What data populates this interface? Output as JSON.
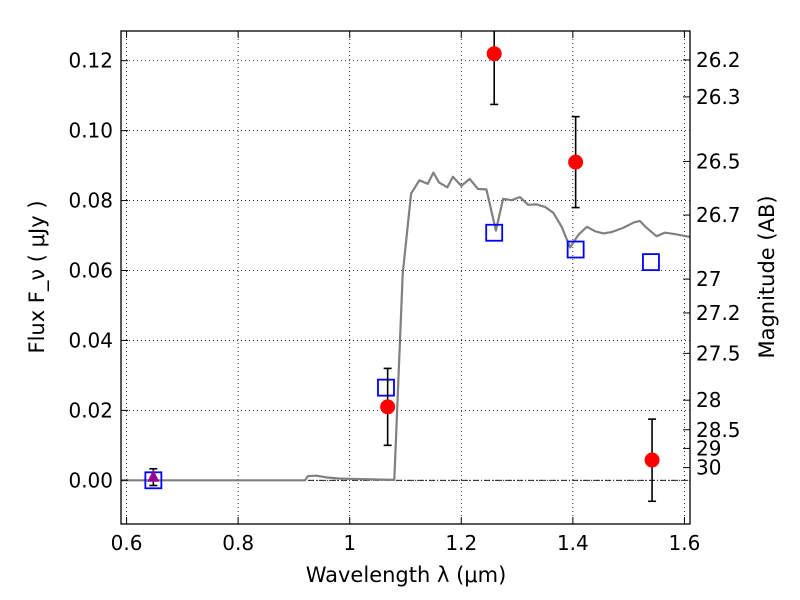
{
  "chart_data": {
    "type": "scatter",
    "xlabel": "Wavelength  λ (μm)",
    "ylabel": "Flux  F_ν  ( μJy )",
    "ylabel_right": "Magnitude (AB)",
    "xlim": [
      0.59,
      1.61
    ],
    "ylim": [
      -0.0125,
      0.1285
    ],
    "grid": true,
    "x_ticks": [
      0.6,
      0.8,
      1.0,
      1.2,
      1.4,
      1.6
    ],
    "x_tick_labels": [
      "0.6",
      "0.8",
      "1",
      "1.2",
      "1.4",
      "1.6"
    ],
    "y_ticks": [
      0.0,
      0.02,
      0.04,
      0.06,
      0.08,
      0.1,
      0.12
    ],
    "y_tick_labels": [
      "0.00",
      "0.02",
      "0.04",
      "0.06",
      "0.08",
      "0.10",
      "0.12"
    ],
    "right_ticks": [
      {
        "mag": 26.2,
        "label": "26.2"
      },
      {
        "mag": 26.3,
        "label": "26.3"
      },
      {
        "mag": 26.5,
        "label": "26.5"
      },
      {
        "mag": 26.7,
        "label": "26.7"
      },
      {
        "mag": 27.0,
        "label": "27"
      },
      {
        "mag": 27.2,
        "label": "27.2"
      },
      {
        "mag": 27.5,
        "label": "27.5"
      },
      {
        "mag": 28.0,
        "label": "28"
      },
      {
        "mag": 28.5,
        "label": "28.5"
      },
      {
        "mag": 29.0,
        "label": "29"
      },
      {
        "mag": 30.0,
        "label": "30"
      }
    ],
    "series": [
      {
        "kind": "line",
        "color": "#808080",
        "points": [
          [
            0.59,
            0.0
          ],
          [
            0.92,
            0.0
          ],
          [
            0.925,
            0.0012
          ],
          [
            0.94,
            0.0013
          ],
          [
            0.96,
            0.0008
          ],
          [
            0.98,
            0.0005
          ],
          [
            1.0,
            0.0004
          ],
          [
            1.03,
            0.0003
          ],
          [
            1.06,
            0.0002
          ],
          [
            1.08,
            0.0001
          ],
          [
            1.095,
            0.059
          ],
          [
            1.11,
            0.082
          ],
          [
            1.125,
            0.0858
          ],
          [
            1.14,
            0.0848
          ],
          [
            1.15,
            0.088
          ],
          [
            1.16,
            0.0852
          ],
          [
            1.175,
            0.0838
          ],
          [
            1.185,
            0.0868
          ],
          [
            1.2,
            0.0842
          ],
          [
            1.215,
            0.0862
          ],
          [
            1.23,
            0.0833
          ],
          [
            1.245,
            0.0832
          ],
          [
            1.262,
            0.0714
          ],
          [
            1.275,
            0.0805
          ],
          [
            1.29,
            0.0801
          ],
          [
            1.305,
            0.081
          ],
          [
            1.32,
            0.0788
          ],
          [
            1.335,
            0.0789
          ],
          [
            1.35,
            0.0782
          ],
          [
            1.365,
            0.0765
          ],
          [
            1.38,
            0.0725
          ],
          [
            1.395,
            0.0666
          ],
          [
            1.41,
            0.0702
          ],
          [
            1.425,
            0.0725
          ],
          [
            1.44,
            0.0712
          ],
          [
            1.455,
            0.0706
          ],
          [
            1.47,
            0.071
          ],
          [
            1.49,
            0.0722
          ],
          [
            1.51,
            0.0738
          ],
          [
            1.52,
            0.0742
          ],
          [
            1.53,
            0.0725
          ],
          [
            1.55,
            0.0698
          ],
          [
            1.565,
            0.0708
          ],
          [
            1.58,
            0.0705
          ],
          [
            1.61,
            0.0696
          ]
        ]
      },
      {
        "kind": "observed",
        "marker": "circle",
        "color": "#ff0000",
        "points": [
          {
            "x": 1.068,
            "y": 0.021,
            "err_low": 0.01,
            "err_high": 0.032
          },
          {
            "x": 1.259,
            "y": 0.122,
            "err_low": 0.1075,
            "err_high": 0.13
          },
          {
            "x": 1.405,
            "y": 0.091,
            "err_low": 0.078,
            "err_high": 0.104
          },
          {
            "x": 1.542,
            "y": 0.0058,
            "err_low": -0.006,
            "err_high": 0.0175
          }
        ]
      },
      {
        "kind": "model",
        "marker": "square",
        "color": "#0000ff",
        "points": [
          {
            "x": 0.648,
            "y": 0.0
          },
          {
            "x": 1.065,
            "y": 0.0265
          },
          {
            "x": 1.259,
            "y": 0.0708
          },
          {
            "x": 1.405,
            "y": 0.066
          },
          {
            "x": 1.54,
            "y": 0.0624
          }
        ]
      },
      {
        "kind": "upper_limit",
        "marker": "triangle",
        "color": "#990099",
        "points": [
          {
            "x": 0.648,
            "y": 0.001,
            "err_low": -0.0015,
            "err_high": 0.0033
          }
        ]
      }
    ],
    "zero_line": true
  }
}
